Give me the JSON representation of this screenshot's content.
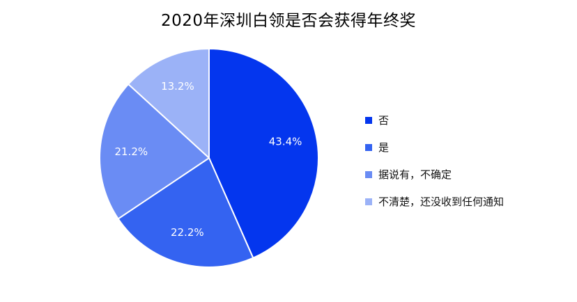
{
  "chart_data": {
    "type": "pie",
    "title": "2020年深圳白领是否会获得年终奖",
    "categories": [
      "否",
      "是",
      "据说有，不确定",
      "不清楚，还没收到任何通知"
    ],
    "values": [
      43.4,
      22.2,
      21.2,
      13.2
    ],
    "value_labels": [
      "43.4%",
      "22.2%",
      "21.2%",
      "13.2%"
    ],
    "colors": [
      "#0436ee",
      "#3463f1",
      "#6a8cf4",
      "#9bb2f7"
    ],
    "start_angle": "12 o'clock",
    "direction": "clockwise",
    "legend": "right"
  }
}
